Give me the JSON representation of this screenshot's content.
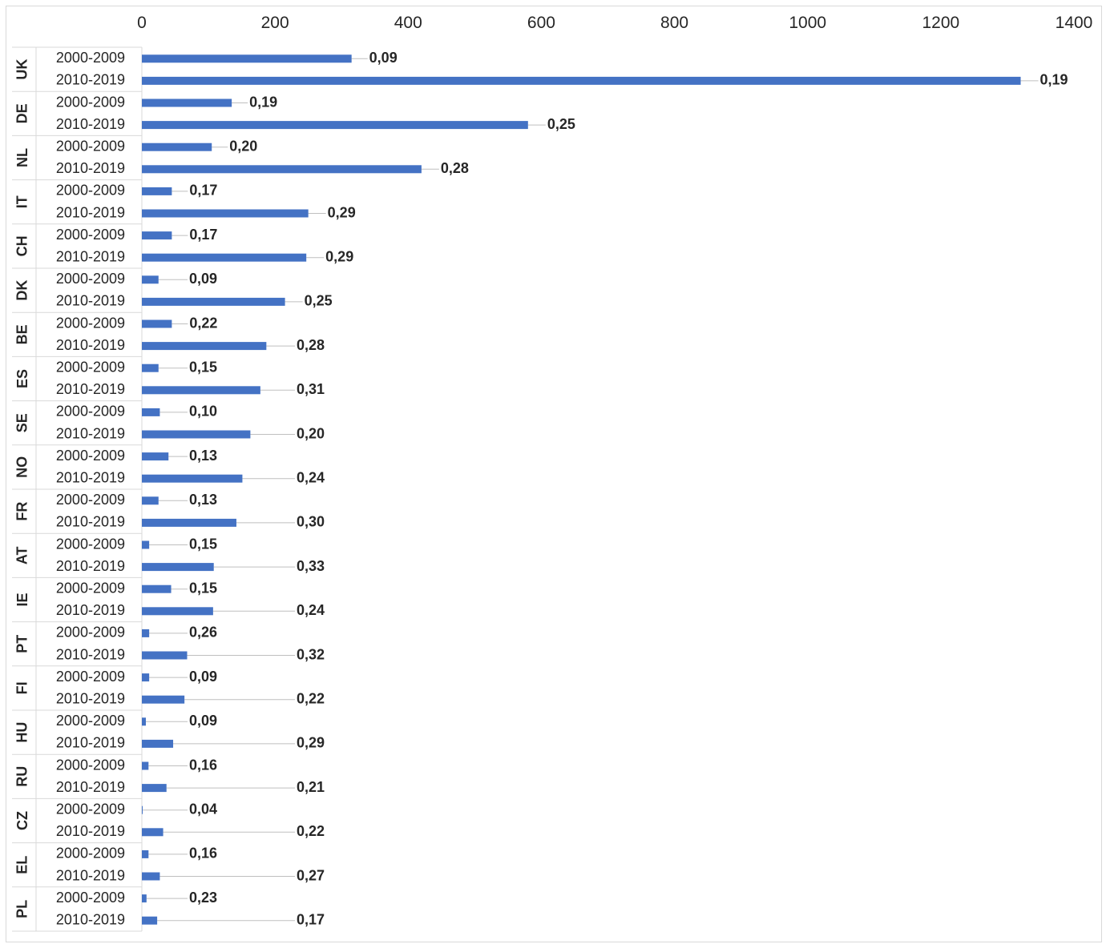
{
  "chart_data": {
    "type": "bar",
    "orientation": "horizontal",
    "title": "",
    "xlabel": "",
    "ylabel": "",
    "xlim": [
      0,
      1400
    ],
    "x_ticks": [
      0,
      200,
      400,
      600,
      800,
      1000,
      1200,
      1400
    ],
    "x_axis_position": "top",
    "grid": false,
    "legend": "none",
    "bar_color": "#4472C4",
    "leader_line_color": "#BFBFBF",
    "groups": [
      {
        "name": "UK",
        "rows": [
          {
            "period": "2000-2009",
            "value": 315,
            "label": "0,09"
          },
          {
            "period": "2010-2019",
            "value": 1320,
            "label": "0,19"
          }
        ]
      },
      {
        "name": "DE",
        "rows": [
          {
            "period": "2000-2009",
            "value": 135,
            "label": "0,19"
          },
          {
            "period": "2010-2019",
            "value": 580,
            "label": "0,25"
          }
        ]
      },
      {
        "name": "NL",
        "rows": [
          {
            "period": "2000-2009",
            "value": 105,
            "label": "0,20"
          },
          {
            "period": "2010-2019",
            "value": 420,
            "label": "0,28"
          }
        ]
      },
      {
        "name": "IT",
        "rows": [
          {
            "period": "2000-2009",
            "value": 45,
            "label": "0,17"
          },
          {
            "period": "2010-2019",
            "value": 250,
            "label": "0,29"
          }
        ]
      },
      {
        "name": "CH",
        "rows": [
          {
            "period": "2000-2009",
            "value": 45,
            "label": "0,17"
          },
          {
            "period": "2010-2019",
            "value": 247,
            "label": "0,29"
          }
        ]
      },
      {
        "name": "DK",
        "rows": [
          {
            "period": "2000-2009",
            "value": 25,
            "label": "0,09"
          },
          {
            "period": "2010-2019",
            "value": 215,
            "label": "0,25"
          }
        ]
      },
      {
        "name": "BE",
        "rows": [
          {
            "period": "2000-2009",
            "value": 45,
            "label": "0,22"
          },
          {
            "period": "2010-2019",
            "value": 187,
            "label": "0,28"
          }
        ]
      },
      {
        "name": "ES",
        "rows": [
          {
            "period": "2000-2009",
            "value": 25,
            "label": "0,15"
          },
          {
            "period": "2010-2019",
            "value": 178,
            "label": "0,31"
          }
        ]
      },
      {
        "name": "SE",
        "rows": [
          {
            "period": "2000-2009",
            "value": 27,
            "label": "0,10"
          },
          {
            "period": "2010-2019",
            "value": 163,
            "label": "0,20"
          }
        ]
      },
      {
        "name": "NO",
        "rows": [
          {
            "period": "2000-2009",
            "value": 40,
            "label": "0,13"
          },
          {
            "period": "2010-2019",
            "value": 151,
            "label": "0,24"
          }
        ]
      },
      {
        "name": "FR",
        "rows": [
          {
            "period": "2000-2009",
            "value": 25,
            "label": "0,13"
          },
          {
            "period": "2010-2019",
            "value": 142,
            "label": "0,30"
          }
        ]
      },
      {
        "name": "AT",
        "rows": [
          {
            "period": "2000-2009",
            "value": 11,
            "label": "0,15"
          },
          {
            "period": "2010-2019",
            "value": 108,
            "label": "0,33"
          }
        ]
      },
      {
        "name": "IE",
        "rows": [
          {
            "period": "2000-2009",
            "value": 44,
            "label": "0,15"
          },
          {
            "period": "2010-2019",
            "value": 107,
            "label": "0,24"
          }
        ]
      },
      {
        "name": "PT",
        "rows": [
          {
            "period": "2000-2009",
            "value": 11,
            "label": "0,26"
          },
          {
            "period": "2010-2019",
            "value": 68,
            "label": "0,32"
          }
        ]
      },
      {
        "name": "FI",
        "rows": [
          {
            "period": "2000-2009",
            "value": 11,
            "label": "0,09"
          },
          {
            "period": "2010-2019",
            "value": 64,
            "label": "0,22"
          }
        ]
      },
      {
        "name": "HU",
        "rows": [
          {
            "period": "2000-2009",
            "value": 6,
            "label": "0,09"
          },
          {
            "period": "2010-2019",
            "value": 47,
            "label": "0,29"
          }
        ]
      },
      {
        "name": "RU",
        "rows": [
          {
            "period": "2000-2009",
            "value": 10,
            "label": "0,16"
          },
          {
            "period": "2010-2019",
            "value": 37,
            "label": "0,21"
          }
        ]
      },
      {
        "name": "CZ",
        "rows": [
          {
            "period": "2000-2009",
            "value": 1,
            "label": "0,04"
          },
          {
            "period": "2010-2019",
            "value": 32,
            "label": "0,22"
          }
        ]
      },
      {
        "name": "EL",
        "rows": [
          {
            "period": "2000-2009",
            "value": 10,
            "label": "0,16"
          },
          {
            "period": "2010-2019",
            "value": 27,
            "label": "0,27"
          }
        ]
      },
      {
        "name": "PL",
        "rows": [
          {
            "period": "2000-2009",
            "value": 7,
            "label": "0,23"
          },
          {
            "period": "2010-2019",
            "value": 23,
            "label": "0,17"
          }
        ]
      }
    ]
  }
}
